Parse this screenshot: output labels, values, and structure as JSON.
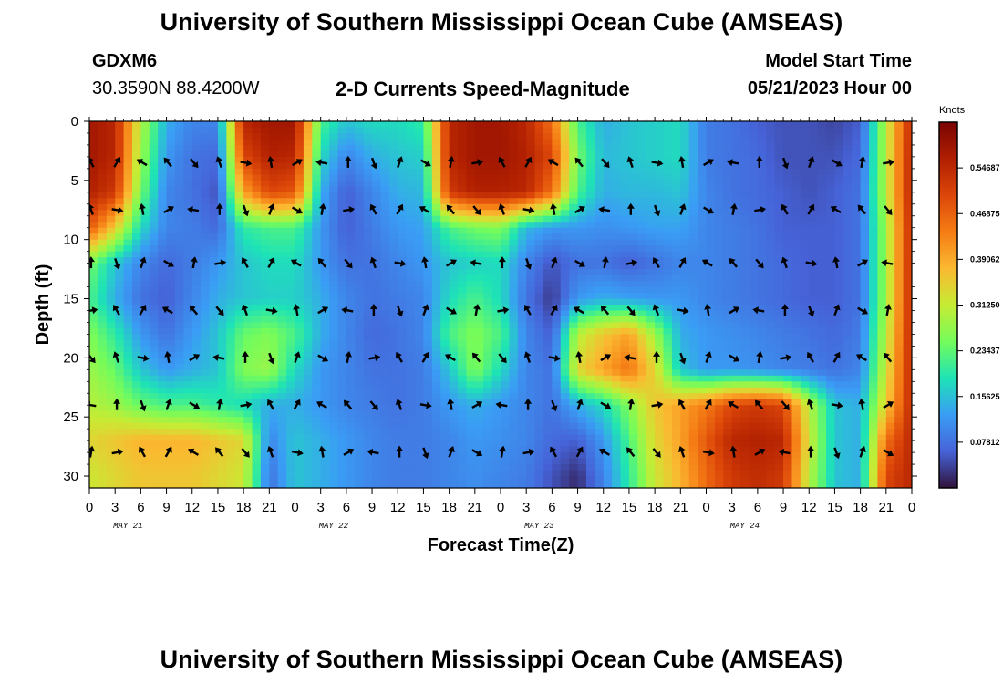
{
  "title": "University of Southern Mississippi Ocean Cube (AMSEAS)",
  "title_repeat": "University of Southern Mississippi Ocean Cube (AMSEAS)",
  "station": {
    "name": "GDXM6",
    "coords": "30.3590N  88.4200W"
  },
  "subtitle": "2-D Currents Speed-Magnitude",
  "model_start": {
    "label": "Model Start Time",
    "value": "05/21/2023 Hour 00"
  },
  "chart_data": {
    "type": "heatmap",
    "title": "2-D Currents Speed-Magnitude",
    "xlabel": "Forecast Time(Z)",
    "ylabel": "Depth (ft)",
    "x_tick_labels": [
      "0",
      "3",
      "6",
      "9",
      "12",
      "15",
      "18",
      "21",
      "0",
      "3",
      "6",
      "9",
      "12",
      "15",
      "18",
      "21",
      "0",
      "3",
      "6",
      "9",
      "12",
      "15",
      "18",
      "21",
      "0",
      "3",
      "6",
      "9",
      "12",
      "15",
      "18",
      "21",
      "0"
    ],
    "day_labels": [
      "MAY 21",
      "MAY 22",
      "MAY 23",
      "MAY 24"
    ],
    "y_ticks": [
      0,
      5,
      10,
      15,
      20,
      25,
      30
    ],
    "ylim": [
      0,
      31
    ],
    "y_inverted": true,
    "xlim_hours": [
      0,
      96
    ],
    "colorbar": {
      "unit": "Knots",
      "range": [
        0,
        0.625
      ],
      "tick_labels": [
        "0.54687",
        "0.46875",
        "0.39062",
        "0.31250",
        "0.23437",
        "0.15625",
        "0.07812"
      ],
      "tick_values": [
        0.54687,
        0.46875,
        0.39062,
        0.3125,
        0.23437,
        0.15625,
        0.07812
      ]
    },
    "depth_rows": [
      3.5,
      7.5,
      12,
      16,
      20,
      24,
      28
    ],
    "speed_grid": {
      "time_hours": [
        0,
        3,
        6,
        9,
        12,
        15,
        18,
        21,
        24,
        27,
        30,
        33,
        36,
        39,
        42,
        45,
        48,
        51,
        54,
        57,
        60,
        63,
        66,
        69,
        72,
        75,
        78,
        81,
        84,
        87,
        90,
        93,
        96
      ],
      "depth_ft": [
        0,
        3,
        6,
        9,
        12,
        15,
        18,
        21,
        24,
        27,
        30,
        31
      ],
      "values": [
        [
          0.58,
          0.55,
          0.3,
          0.14,
          0.1,
          0.1,
          0.55,
          0.58,
          0.58,
          0.22,
          0.16,
          0.18,
          0.18,
          0.2,
          0.55,
          0.58,
          0.58,
          0.55,
          0.45,
          0.22,
          0.14,
          0.16,
          0.17,
          0.18,
          0.09,
          0.08,
          0.06,
          0.05,
          0.05,
          0.04,
          0.06,
          0.3,
          0.55
        ],
        [
          0.58,
          0.55,
          0.28,
          0.12,
          0.08,
          0.07,
          0.5,
          0.56,
          0.55,
          0.18,
          0.1,
          0.14,
          0.16,
          0.17,
          0.55,
          0.58,
          0.58,
          0.56,
          0.5,
          0.25,
          0.15,
          0.16,
          0.17,
          0.18,
          0.09,
          0.08,
          0.07,
          0.05,
          0.05,
          0.05,
          0.07,
          0.3,
          0.56
        ],
        [
          0.56,
          0.52,
          0.25,
          0.1,
          0.08,
          0.05,
          0.4,
          0.5,
          0.48,
          0.14,
          0.06,
          0.1,
          0.14,
          0.15,
          0.52,
          0.56,
          0.56,
          0.55,
          0.45,
          0.22,
          0.14,
          0.15,
          0.15,
          0.16,
          0.1,
          0.08,
          0.07,
          0.06,
          0.05,
          0.06,
          0.08,
          0.3,
          0.56
        ],
        [
          0.48,
          0.35,
          0.18,
          0.1,
          0.09,
          0.07,
          0.2,
          0.22,
          0.22,
          0.12,
          0.06,
          0.09,
          0.12,
          0.13,
          0.22,
          0.25,
          0.26,
          0.15,
          0.12,
          0.12,
          0.11,
          0.12,
          0.13,
          0.13,
          0.1,
          0.09,
          0.08,
          0.06,
          0.06,
          0.06,
          0.08,
          0.28,
          0.55
        ],
        [
          0.25,
          0.16,
          0.1,
          0.07,
          0.09,
          0.12,
          0.16,
          0.18,
          0.18,
          0.12,
          0.08,
          0.08,
          0.1,
          0.12,
          0.16,
          0.17,
          0.18,
          0.1,
          0.05,
          0.08,
          0.08,
          0.06,
          0.08,
          0.1,
          0.1,
          0.09,
          0.08,
          0.07,
          0.06,
          0.06,
          0.08,
          0.28,
          0.55
        ],
        [
          0.22,
          0.14,
          0.08,
          0.06,
          0.1,
          0.14,
          0.16,
          0.17,
          0.17,
          0.14,
          0.1,
          0.08,
          0.09,
          0.1,
          0.18,
          0.22,
          0.18,
          0.08,
          0.03,
          0.12,
          0.14,
          0.13,
          0.12,
          0.12,
          0.1,
          0.09,
          0.08,
          0.07,
          0.06,
          0.06,
          0.08,
          0.28,
          0.55
        ],
        [
          0.26,
          0.2,
          0.12,
          0.08,
          0.12,
          0.16,
          0.24,
          0.26,
          0.22,
          0.14,
          0.1,
          0.07,
          0.08,
          0.1,
          0.22,
          0.26,
          0.22,
          0.1,
          0.06,
          0.3,
          0.36,
          0.4,
          0.28,
          0.14,
          0.12,
          0.11,
          0.1,
          0.09,
          0.08,
          0.07,
          0.09,
          0.3,
          0.55
        ],
        [
          0.28,
          0.24,
          0.16,
          0.12,
          0.14,
          0.16,
          0.26,
          0.28,
          0.18,
          0.12,
          0.1,
          0.08,
          0.08,
          0.09,
          0.16,
          0.26,
          0.18,
          0.1,
          0.08,
          0.34,
          0.4,
          0.45,
          0.34,
          0.16,
          0.12,
          0.12,
          0.11,
          0.1,
          0.09,
          0.08,
          0.1,
          0.32,
          0.55
        ],
        [
          0.3,
          0.28,
          0.24,
          0.22,
          0.22,
          0.2,
          0.18,
          0.14,
          0.14,
          0.12,
          0.1,
          0.09,
          0.08,
          0.09,
          0.12,
          0.14,
          0.12,
          0.1,
          0.08,
          0.14,
          0.18,
          0.26,
          0.36,
          0.4,
          0.44,
          0.5,
          0.52,
          0.5,
          0.3,
          0.16,
          0.14,
          0.35,
          0.55
        ],
        [
          0.34,
          0.36,
          0.38,
          0.38,
          0.38,
          0.36,
          0.34,
          0.1,
          0.16,
          0.14,
          0.12,
          0.1,
          0.09,
          0.09,
          0.1,
          0.12,
          0.11,
          0.1,
          0.07,
          0.06,
          0.12,
          0.22,
          0.34,
          0.4,
          0.48,
          0.55,
          0.56,
          0.55,
          0.32,
          0.16,
          0.14,
          0.45,
          0.55
        ],
        [
          0.32,
          0.34,
          0.36,
          0.36,
          0.36,
          0.34,
          0.32,
          0.08,
          0.16,
          0.14,
          0.12,
          0.1,
          0.09,
          0.09,
          0.1,
          0.11,
          0.1,
          0.09,
          0.05,
          0.02,
          0.1,
          0.2,
          0.32,
          0.38,
          0.46,
          0.52,
          0.54,
          0.52,
          0.3,
          0.16,
          0.14,
          0.5,
          0.55
        ],
        [
          0.32,
          0.34,
          0.36,
          0.36,
          0.36,
          0.34,
          0.32,
          0.08,
          0.16,
          0.14,
          0.12,
          0.1,
          0.09,
          0.09,
          0.1,
          0.11,
          0.1,
          0.09,
          0.05,
          0.02,
          0.1,
          0.2,
          0.32,
          0.38,
          0.46,
          0.52,
          0.54,
          0.52,
          0.3,
          0.16,
          0.14,
          0.5,
          0.55
        ]
      ]
    }
  }
}
